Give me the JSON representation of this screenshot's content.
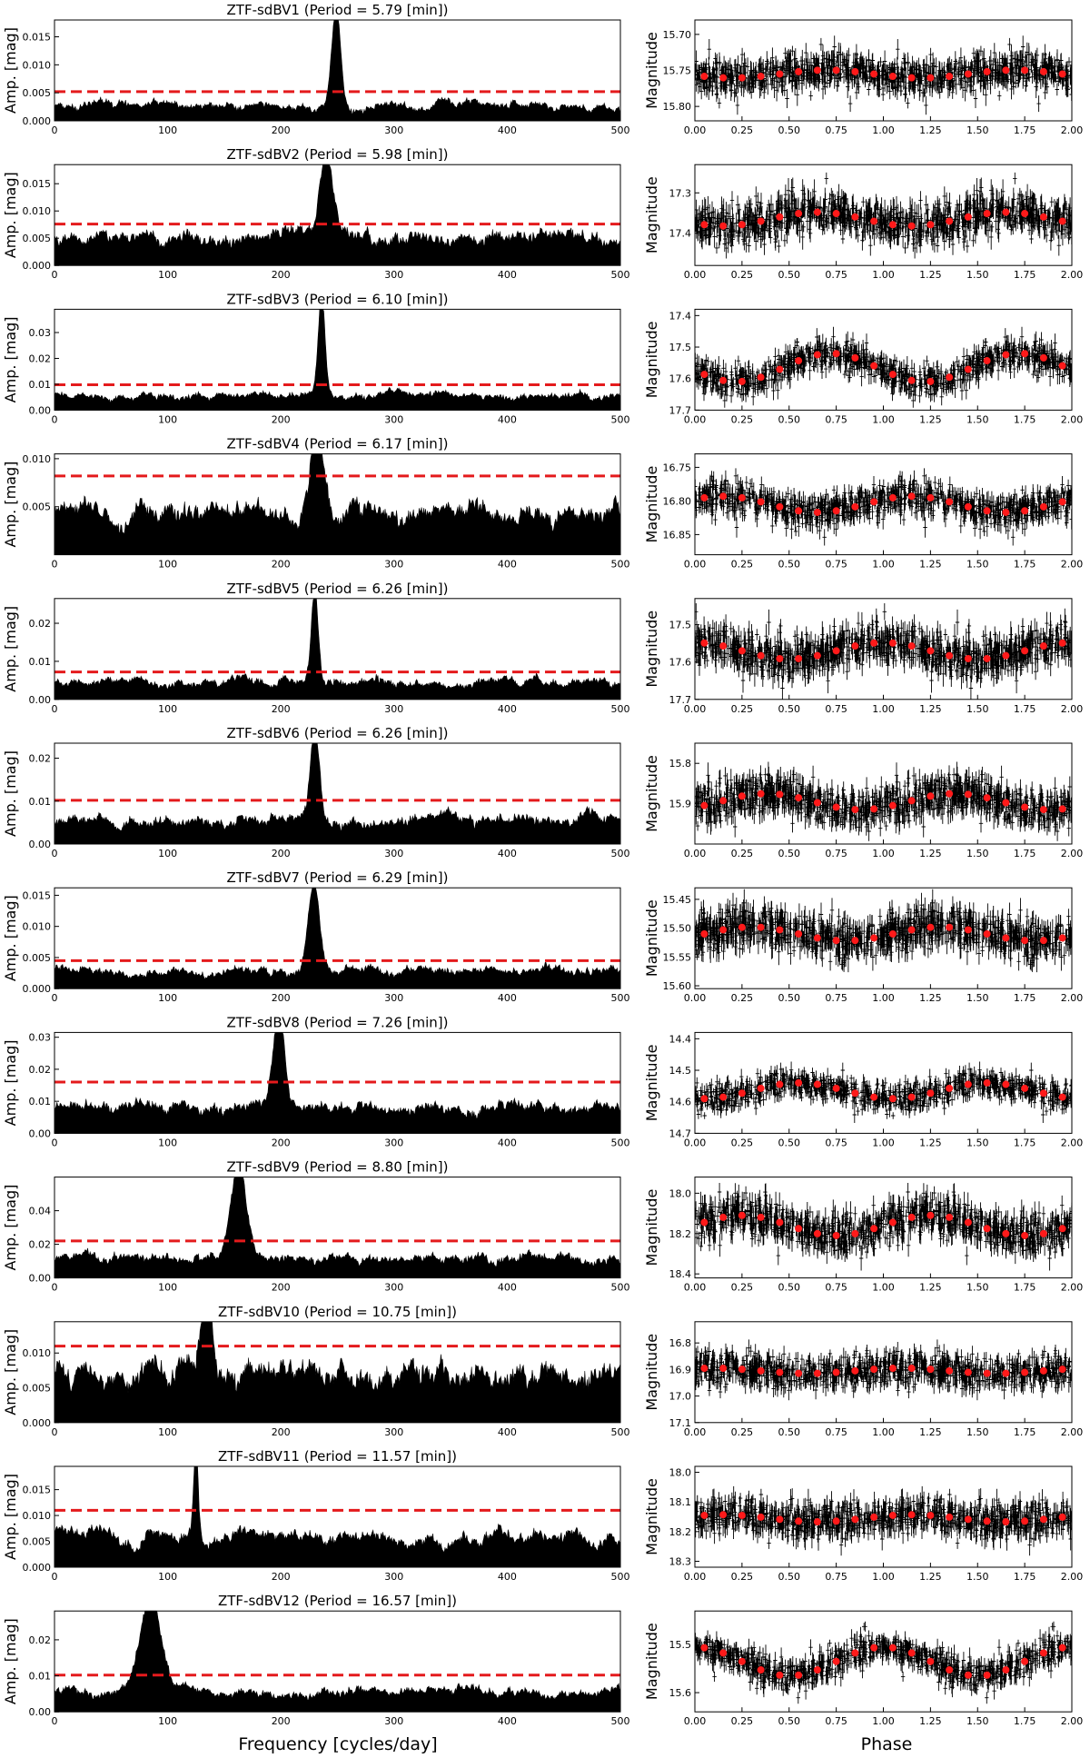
{
  "figure": {
    "left_xlabel": "Frequency [cycles/day]",
    "right_xlabel": "Phase",
    "left_ylabel": "Amp. [mag]",
    "right_ylabel": "Magnitude",
    "colors": {
      "series": "#000000",
      "threshold": "#e41a1c",
      "binned": "#ff1a1a"
    }
  },
  "chart_data": [
    {
      "panel": 1,
      "title": "ZTF-sdBV1 (Period = 5.79 [min])",
      "periodogram": {
        "type": "area",
        "xlim": [
          0,
          500
        ],
        "xticks": [
          0,
          100,
          200,
          300,
          400,
          500
        ],
        "ylim": [
          0,
          0.018
        ],
        "yticks": [
          0.0,
          0.005,
          0.01,
          0.015
        ],
        "ytick_labels": [
          "0.000",
          "0.005",
          "0.010",
          "0.015"
        ],
        "peak_freq": 249,
        "peak_amp": 0.0175,
        "peak_width": 4,
        "noise_level": 0.0028,
        "threshold": 0.0052
      },
      "lightcurve": {
        "type": "scatter",
        "xlim": [
          0,
          2.0
        ],
        "xticks": [
          0,
          0.25,
          0.5,
          0.75,
          1.0,
          1.25,
          1.5,
          1.75,
          2.0
        ],
        "xtick_labels": [
          "0.00",
          "0.25",
          "0.50",
          "0.75",
          "1.00",
          "1.25",
          "1.50",
          "1.75",
          "2.00"
        ],
        "ylim": [
          15.82,
          15.68
        ],
        "yticks": [
          15.7,
          15.75,
          15.8
        ],
        "ytick_labels": [
          "15.70",
          "15.75",
          "15.80"
        ],
        "mean_mag": 15.755,
        "semi_amplitude": 0.0055,
        "scatter": 0.02,
        "peak_phase": 0.7
      }
    },
    {
      "panel": 2,
      "title": "ZTF-sdBV2 (Period = 5.98 [min])",
      "periodogram": {
        "type": "area",
        "xlim": [
          0,
          500
        ],
        "xticks": [
          0,
          100,
          200,
          300,
          400,
          500
        ],
        "ylim": [
          0,
          0.0185
        ],
        "yticks": [
          0.0,
          0.005,
          0.01,
          0.015
        ],
        "ytick_labels": [
          "0.000",
          "0.005",
          "0.010",
          "0.015"
        ],
        "peak_freq": 240,
        "peak_amp": 0.0175,
        "peak_width": 6,
        "noise_level": 0.0052,
        "threshold": 0.0076
      },
      "lightcurve": {
        "type": "scatter",
        "xlim": [
          0,
          2.0
        ],
        "xticks": [
          0,
          0.25,
          0.5,
          0.75,
          1.0,
          1.25,
          1.5,
          1.75,
          2.0
        ],
        "xtick_labels": [
          "0.00",
          "0.25",
          "0.50",
          "0.75",
          "1.00",
          "1.25",
          "1.50",
          "1.75",
          "2.00"
        ],
        "ylim": [
          17.48,
          17.23
        ],
        "yticks": [
          17.3,
          17.4
        ],
        "ytick_labels": [
          "17.3",
          "17.4"
        ],
        "mean_mag": 17.365,
        "semi_amplitude": 0.017,
        "scatter": 0.04,
        "peak_phase": 0.65
      }
    },
    {
      "panel": 3,
      "title": "ZTF-sdBV3 (Period = 6.10 [min])",
      "periodogram": {
        "type": "area",
        "xlim": [
          0,
          500
        ],
        "xticks": [
          0,
          100,
          200,
          300,
          400,
          500
        ],
        "ylim": [
          0,
          0.039
        ],
        "yticks": [
          0.0,
          0.01,
          0.02,
          0.03
        ],
        "ytick_labels": [
          "0.00",
          "0.01",
          "0.02",
          "0.03"
        ],
        "peak_freq": 236,
        "peak_amp": 0.038,
        "peak_width": 3,
        "noise_level": 0.0055,
        "threshold": 0.0098
      },
      "lightcurve": {
        "type": "scatter",
        "xlim": [
          0,
          2.0
        ],
        "xticks": [
          0,
          0.25,
          0.5,
          0.75,
          1.0,
          1.25,
          1.5,
          1.75,
          2.0
        ],
        "xtick_labels": [
          "0.00",
          "0.25",
          "0.50",
          "0.75",
          "1.00",
          "1.25",
          "1.50",
          "1.75",
          "2.00"
        ],
        "ylim": [
          17.7,
          17.38
        ],
        "yticks": [
          17.4,
          17.5,
          17.6,
          17.7
        ],
        "ytick_labels": [
          "17.4",
          "17.5",
          "17.6",
          "17.7"
        ],
        "mean_mag": 17.565,
        "semi_amplitude": 0.045,
        "scatter": 0.04,
        "peak_phase": 0.72
      }
    },
    {
      "panel": 4,
      "title": "ZTF-sdBV4 (Period = 6.17 [min])",
      "periodogram": {
        "type": "area",
        "xlim": [
          0,
          500
        ],
        "xticks": [
          0,
          100,
          200,
          300,
          400,
          500
        ],
        "ylim": [
          0,
          0.0105
        ],
        "yticks": [
          0.005,
          0.01
        ],
        "ytick_labels": [
          "0.005",
          "0.010"
        ],
        "peak_freq": 232,
        "peak_amp": 0.0096,
        "peak_width": 6,
        "noise_level": 0.0043,
        "threshold": 0.0082
      },
      "lightcurve": {
        "type": "scatter",
        "xlim": [
          0,
          2.0
        ],
        "xticks": [
          0,
          0.25,
          0.5,
          0.75,
          1.0,
          1.25,
          1.5,
          1.75,
          2.0
        ],
        "xtick_labels": [
          "0.00",
          "0.25",
          "0.50",
          "0.75",
          "1.00",
          "1.25",
          "1.50",
          "1.75",
          "2.00"
        ],
        "ylim": [
          16.88,
          16.73
        ],
        "yticks": [
          16.75,
          16.8,
          16.85
        ],
        "ytick_labels": [
          "16.75",
          "16.80",
          "16.85"
        ],
        "mean_mag": 16.805,
        "semi_amplitude": 0.012,
        "scatter": 0.02,
        "peak_phase": 0.15
      }
    },
    {
      "panel": 5,
      "title": "ZTF-sdBV5 (Period = 6.26 [min])",
      "periodogram": {
        "type": "area",
        "xlim": [
          0,
          500
        ],
        "xticks": [
          0,
          100,
          200,
          300,
          400,
          500
        ],
        "ylim": [
          0,
          0.0265
        ],
        "yticks": [
          0.0,
          0.01,
          0.02
        ],
        "ytick_labels": [
          "0.00",
          "0.01",
          "0.02"
        ],
        "peak_freq": 230,
        "peak_amp": 0.025,
        "peak_width": 3,
        "noise_level": 0.0045,
        "threshold": 0.0072
      },
      "lightcurve": {
        "type": "scatter",
        "xlim": [
          0,
          2.0
        ],
        "xticks": [
          0,
          0.25,
          0.5,
          0.75,
          1.0,
          1.25,
          1.5,
          1.75,
          2.0
        ],
        "xtick_labels": [
          "0.00",
          "0.25",
          "0.50",
          "0.75",
          "1.00",
          "1.25",
          "1.50",
          "1.75",
          "2.00"
        ],
        "ylim": [
          17.7,
          17.43
        ],
        "yticks": [
          17.5,
          17.6,
          17.7
        ],
        "ytick_labels": [
          "17.5",
          "17.6",
          "17.7"
        ],
        "mean_mag": 17.57,
        "semi_amplitude": 0.022,
        "scatter": 0.045,
        "peak_phase": 0.0
      }
    },
    {
      "panel": 6,
      "title": "ZTF-sdBV6 (Period = 6.26 [min])",
      "periodogram": {
        "type": "area",
        "xlim": [
          0,
          500
        ],
        "xticks": [
          0,
          100,
          200,
          300,
          400,
          500
        ],
        "ylim": [
          0,
          0.0235
        ],
        "yticks": [
          0.0,
          0.01,
          0.02
        ],
        "ytick_labels": [
          "0.00",
          "0.01",
          "0.02"
        ],
        "peak_freq": 230,
        "peak_amp": 0.0225,
        "peak_width": 4,
        "noise_level": 0.0055,
        "threshold": 0.0102
      },
      "lightcurve": {
        "type": "scatter",
        "xlim": [
          0,
          2.0
        ],
        "xticks": [
          0,
          0.25,
          0.5,
          0.75,
          1.0,
          1.25,
          1.5,
          1.75,
          2.0
        ],
        "xtick_labels": [
          "0.00",
          "0.25",
          "0.50",
          "0.75",
          "1.00",
          "1.25",
          "1.50",
          "1.75",
          "2.00"
        ],
        "ylim": [
          16.0,
          15.75
        ],
        "yticks": [
          15.8,
          15.9
        ],
        "ytick_labels": [
          "15.8",
          "15.9"
        ],
        "mean_mag": 15.895,
        "semi_amplitude": 0.02,
        "scatter": 0.04,
        "peak_phase": 0.38
      }
    },
    {
      "panel": 7,
      "title": "ZTF-sdBV7 (Period = 6.29 [min])",
      "periodogram": {
        "type": "area",
        "xlim": [
          0,
          500
        ],
        "xticks": [
          0,
          100,
          200,
          300,
          400,
          500
        ],
        "ylim": [
          0,
          0.0162
        ],
        "yticks": [
          0.0,
          0.005,
          0.01,
          0.015
        ],
        "ytick_labels": [
          "0.000",
          "0.005",
          "0.010",
          "0.015"
        ],
        "peak_freq": 229,
        "peak_amp": 0.0145,
        "peak_width": 5,
        "noise_level": 0.0028,
        "threshold": 0.0045
      },
      "lightcurve": {
        "type": "scatter",
        "xlim": [
          0,
          2.0
        ],
        "xticks": [
          0,
          0.25,
          0.5,
          0.75,
          1.0,
          1.25,
          1.5,
          1.75,
          2.0
        ],
        "xtick_labels": [
          "0.00",
          "0.25",
          "0.50",
          "0.75",
          "1.00",
          "1.25",
          "1.50",
          "1.75",
          "2.00"
        ],
        "ylim": [
          15.605,
          15.43
        ],
        "yticks": [
          15.45,
          15.5,
          15.55,
          15.6
        ],
        "ytick_labels": [
          "15.45",
          "15.50",
          "15.55",
          "15.60"
        ],
        "mean_mag": 15.51,
        "semi_amplitude": 0.012,
        "scatter": 0.03,
        "peak_phase": 0.3
      }
    },
    {
      "panel": 8,
      "title": "ZTF-sdBV8 (Period = 7.26 [min])",
      "periodogram": {
        "type": "area",
        "xlim": [
          0,
          500
        ],
        "xticks": [
          0,
          100,
          200,
          300,
          400,
          500
        ],
        "ylim": [
          0,
          0.0315
        ],
        "yticks": [
          0.0,
          0.01,
          0.02,
          0.03
        ],
        "ytick_labels": [
          "0.00",
          "0.01",
          "0.02",
          "0.03"
        ],
        "peak_freq": 198,
        "peak_amp": 0.03,
        "peak_width": 5,
        "noise_level": 0.008,
        "threshold": 0.016
      },
      "lightcurve": {
        "type": "scatter",
        "xlim": [
          0,
          2.0
        ],
        "xticks": [
          0,
          0.25,
          0.5,
          0.75,
          1.0,
          1.25,
          1.5,
          1.75,
          2.0
        ],
        "xtick_labels": [
          "0.00",
          "0.25",
          "0.50",
          "0.75",
          "1.00",
          "1.25",
          "1.50",
          "1.75",
          "2.00"
        ],
        "ylim": [
          14.7,
          14.38
        ],
        "yticks": [
          14.4,
          14.5,
          14.6,
          14.7
        ],
        "ytick_labels": [
          "14.4",
          "14.5",
          "14.6",
          "14.7"
        ],
        "mean_mag": 14.565,
        "semi_amplitude": 0.025,
        "scatter": 0.035,
        "peak_phase": 0.55
      }
    },
    {
      "panel": 9,
      "title": "ZTF-sdBV9 (Period = 8.80 [min])",
      "periodogram": {
        "type": "area",
        "xlim": [
          0,
          500
        ],
        "xticks": [
          0,
          100,
          200,
          300,
          400,
          500
        ],
        "ylim": [
          0,
          0.06
        ],
        "yticks": [
          0.0,
          0.02,
          0.04
        ],
        "ytick_labels": [
          "0.00",
          "0.02",
          "0.04"
        ],
        "peak_freq": 163,
        "peak_amp": 0.057,
        "peak_width": 7,
        "noise_level": 0.012,
        "threshold": 0.022
      },
      "lightcurve": {
        "type": "scatter",
        "xlim": [
          0,
          2.0
        ],
        "xticks": [
          0,
          0.25,
          0.5,
          0.75,
          1.0,
          1.25,
          1.5,
          1.75,
          2.0
        ],
        "xtick_labels": [
          "0.00",
          "0.25",
          "0.50",
          "0.75",
          "1.00",
          "1.25",
          "1.50",
          "1.75",
          "2.00"
        ],
        "ylim": [
          18.42,
          17.92
        ],
        "yticks": [
          18.0,
          18.2,
          18.4
        ],
        "ytick_labels": [
          "18.0",
          "18.2",
          "18.4"
        ],
        "mean_mag": 18.16,
        "semi_amplitude": 0.05,
        "scatter": 0.08,
        "peak_phase": 0.25
      }
    },
    {
      "panel": 10,
      "title": "ZTF-sdBV10 (Period = 10.75 [min])",
      "periodogram": {
        "type": "area",
        "xlim": [
          0,
          500
        ],
        "xticks": [
          0,
          100,
          200,
          300,
          400,
          500
        ],
        "ylim": [
          0,
          0.0145
        ],
        "yticks": [
          0.0,
          0.005,
          0.01
        ],
        "ytick_labels": [
          "0.000",
          "0.005",
          "0.010"
        ],
        "peak_freq": 134,
        "peak_amp": 0.0135,
        "peak_width": 4,
        "noise_level": 0.0072,
        "threshold": 0.011
      },
      "lightcurve": {
        "type": "scatter",
        "xlim": [
          0,
          2.0
        ],
        "xticks": [
          0,
          0.25,
          0.5,
          0.75,
          1.0,
          1.25,
          1.5,
          1.75,
          2.0
        ],
        "xtick_labels": [
          "0.00",
          "0.25",
          "0.50",
          "0.75",
          "1.00",
          "1.25",
          "1.50",
          "1.75",
          "2.00"
        ],
        "ylim": [
          17.1,
          16.72
        ],
        "yticks": [
          16.8,
          16.9,
          17.0,
          17.1
        ],
        "ytick_labels": [
          "16.8",
          "16.9",
          "17.0",
          "17.1"
        ],
        "mean_mag": 16.905,
        "semi_amplitude": 0.01,
        "scatter": 0.05,
        "peak_phase": 0.1
      }
    },
    {
      "panel": 11,
      "title": "ZTF-sdBV11 (Period = 11.57 [min])",
      "periodogram": {
        "type": "area",
        "xlim": [
          0,
          500
        ],
        "xticks": [
          0,
          100,
          200,
          300,
          400,
          500
        ],
        "ylim": [
          0,
          0.0195
        ],
        "yticks": [
          0.0,
          0.005,
          0.01,
          0.015
        ],
        "ytick_labels": [
          "0.000",
          "0.005",
          "0.010",
          "0.015"
        ],
        "peak_freq": 125,
        "peak_amp": 0.0183,
        "peak_width": 2,
        "noise_level": 0.0058,
        "threshold": 0.011
      },
      "lightcurve": {
        "type": "scatter",
        "xlim": [
          0,
          2.0
        ],
        "xticks": [
          0,
          0.25,
          0.5,
          0.75,
          1.0,
          1.25,
          1.5,
          1.75,
          2.0
        ],
        "xtick_labels": [
          "0.00",
          "0.25",
          "0.50",
          "0.75",
          "1.00",
          "1.25",
          "1.50",
          "1.75",
          "2.00"
        ],
        "ylim": [
          18.32,
          17.98
        ],
        "yticks": [
          18.0,
          18.1,
          18.2,
          18.3
        ],
        "ytick_labels": [
          "18.0",
          "18.1",
          "18.2",
          "18.3"
        ],
        "mean_mag": 18.155,
        "semi_amplitude": 0.012,
        "scatter": 0.05,
        "peak_phase": 0.15
      }
    },
    {
      "panel": 12,
      "title": "ZTF-sdBV12 (Period = 16.57 [min])",
      "periodogram": {
        "type": "area",
        "xlim": [
          0,
          500
        ],
        "xticks": [
          0,
          100,
          200,
          300,
          400,
          500
        ],
        "ylim": [
          0,
          0.028
        ],
        "yticks": [
          0.0,
          0.01,
          0.02
        ],
        "ytick_labels": [
          "0.00",
          "0.01",
          "0.02"
        ],
        "peak_freq": 85,
        "peak_amp": 0.0265,
        "peak_width": 9,
        "noise_level": 0.0055,
        "threshold": 0.0102
      },
      "lightcurve": {
        "type": "scatter",
        "xlim": [
          0,
          2.0
        ],
        "xticks": [
          0,
          0.25,
          0.5,
          0.75,
          1.0,
          1.25,
          1.5,
          1.75,
          2.0
        ],
        "xtick_labels": [
          "0.00",
          "0.25",
          "0.50",
          "0.75",
          "1.00",
          "1.25",
          "1.50",
          "1.75",
          "2.00"
        ],
        "ylim": [
          15.64,
          15.43
        ],
        "yticks": [
          15.5,
          15.6
        ],
        "ytick_labels": [
          "15.5",
          "15.6"
        ],
        "mean_mag": 15.535,
        "semi_amplitude": 0.03,
        "scatter": 0.025,
        "peak_phase": 0.0
      }
    }
  ]
}
